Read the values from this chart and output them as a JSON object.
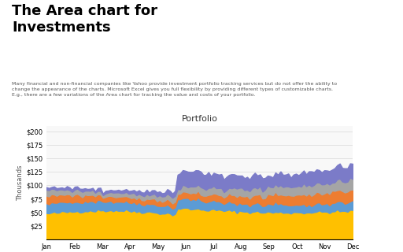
{
  "title": "Portfolio",
  "main_title": "The Area chart for\nInvestments",
  "months": [
    "Jan",
    "Feb",
    "Mar",
    "Apr",
    "May",
    "Jun",
    "Jul",
    "Aug",
    "Sep",
    "Oct",
    "Nov",
    "Dec"
  ],
  "ylabel": "Thousands",
  "yticks": [
    25,
    50,
    75,
    100,
    125,
    150,
    175,
    200
  ],
  "ylim": [
    0,
    210
  ],
  "colors": {
    "orange": "#FFC000",
    "blue": "#5B9BD5",
    "red": "#ED7D31",
    "gray": "#A5A5A5",
    "purple": "#7B7BC8"
  },
  "background_color": "#FFFFFF",
  "grid_color": "#D8D8D8"
}
